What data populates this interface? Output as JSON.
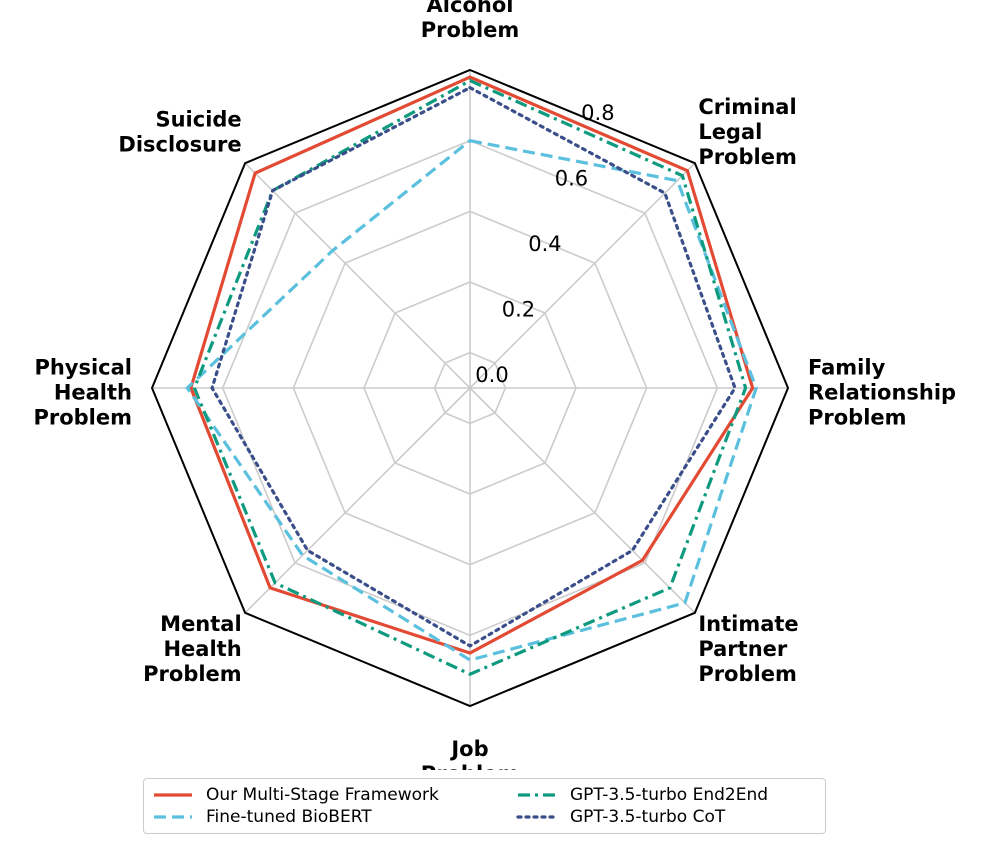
{
  "chart_data": {
    "type": "radar",
    "categories": [
      [
        "Alcohol",
        "Problem"
      ],
      [
        "Criminal",
        "Legal",
        "Problem"
      ],
      [
        "Family",
        "Relationship",
        "Problem"
      ],
      [
        "Intimate",
        "Partner",
        "Problem"
      ],
      [
        "Job",
        "Problem"
      ],
      [
        "Mental",
        "Health",
        "Problem"
      ],
      [
        "Physical",
        "Health",
        "Problem"
      ],
      [
        "Suicide",
        "Disclosure"
      ]
    ],
    "r_ticks": [
      "0.0",
      "0.2",
      "0.4",
      "0.6",
      "0.8"
    ],
    "r_tick_values": [
      0.0,
      0.2,
      0.4,
      0.6,
      0.8
    ],
    "r_range": [
      0,
      0.9
    ],
    "grid": true,
    "legend_position": "bottom",
    "series": [
      {
        "name": "Our Multi-Stage Framework",
        "color": "#e24a33",
        "dash": "solid",
        "values": [
          0.88,
          0.87,
          0.8,
          0.69,
          0.75,
          0.8,
          0.79,
          0.86
        ]
      },
      {
        "name": "Fine-tuned BioBERT",
        "color": "#5bc0de",
        "dash": "dashed",
        "values": [
          0.7,
          0.83,
          0.81,
          0.86,
          0.77,
          0.67,
          0.8,
          0.55
        ]
      },
      {
        "name": "GPT-3.5-turbo End2End",
        "color": "#0e9a7e",
        "dash": "dashdot",
        "values": [
          0.87,
          0.85,
          0.78,
          0.8,
          0.81,
          0.78,
          0.78,
          0.79
        ]
      },
      {
        "name": "GPT-3.5-turbo CoT",
        "color": "#3a4f8a",
        "dash": "dotted",
        "values": [
          0.85,
          0.78,
          0.75,
          0.65,
          0.73,
          0.65,
          0.73,
          0.79
        ]
      }
    ]
  }
}
